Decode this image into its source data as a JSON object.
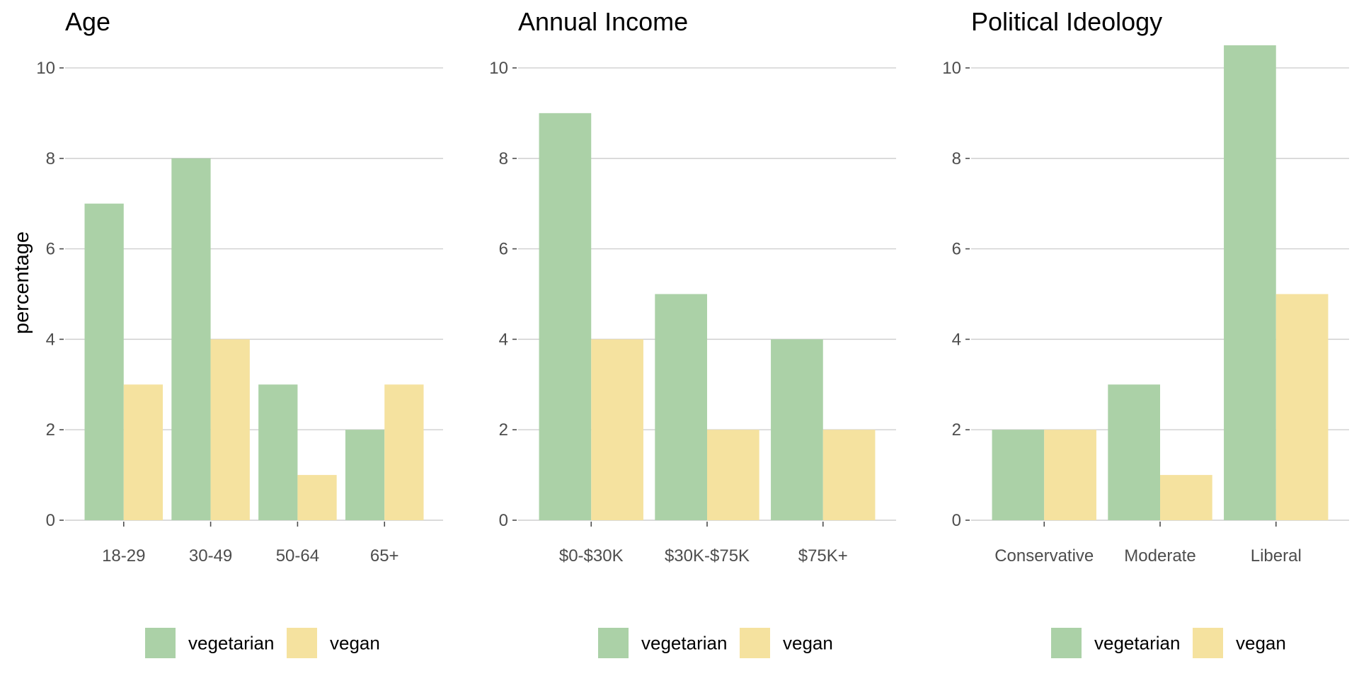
{
  "chart_data": [
    {
      "type": "bar",
      "title": "Age",
      "ylabel": "percentage",
      "xlabel": "",
      "ylim": [
        0,
        10.5
      ],
      "yticks": [
        0,
        2,
        4,
        6,
        8,
        10
      ],
      "grid": "horizontal",
      "legend_position": "bottom",
      "categories": [
        "18-29",
        "30-49",
        "50-64",
        "65+"
      ],
      "series": [
        {
          "name": "vegetarian",
          "color": "#abd1a7",
          "values": [
            7,
            8,
            3,
            2
          ]
        },
        {
          "name": "vegan",
          "color": "#f5e29f",
          "values": [
            3,
            4,
            1,
            3
          ]
        }
      ]
    },
    {
      "type": "bar",
      "title": "Annual Income",
      "ylabel": "",
      "xlabel": "",
      "ylim": [
        0,
        10.5
      ],
      "yticks": [
        0,
        2,
        4,
        6,
        8,
        10
      ],
      "grid": "horizontal",
      "legend_position": "bottom",
      "categories": [
        "$0-$30K",
        "$30K-$75K",
        "$75K+"
      ],
      "series": [
        {
          "name": "vegetarian",
          "color": "#abd1a7",
          "values": [
            9,
            5,
            4
          ]
        },
        {
          "name": "vegan",
          "color": "#f5e29f",
          "values": [
            4,
            2,
            2
          ]
        }
      ]
    },
    {
      "type": "bar",
      "title": "Political Ideology",
      "ylabel": "",
      "xlabel": "",
      "ylim": [
        0,
        10.5
      ],
      "yticks": [
        0,
        2,
        4,
        6,
        8,
        10
      ],
      "grid": "horizontal",
      "legend_position": "bottom",
      "categories": [
        "Conservative",
        "Moderate",
        "Liberal"
      ],
      "series": [
        {
          "name": "vegetarian",
          "color": "#abd1a7",
          "values": [
            2,
            3,
            10.5
          ]
        },
        {
          "name": "vegan",
          "color": "#f5e29f",
          "values": [
            2,
            1,
            5
          ]
        }
      ]
    }
  ]
}
